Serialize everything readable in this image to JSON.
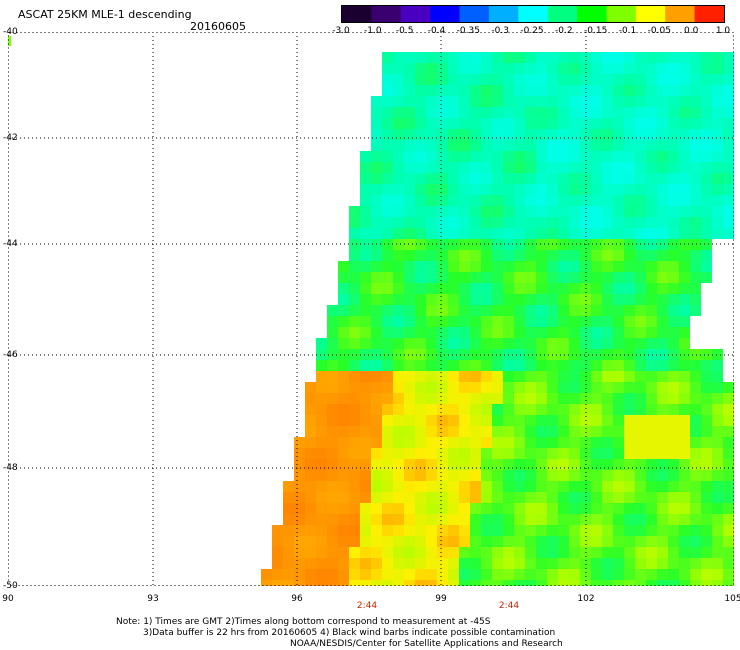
{
  "header": {
    "title": "ASCAT 25KM MLE-1 descending",
    "date": "20160605"
  },
  "colorbar": {
    "labels": [
      "-3.0",
      "-1.0",
      "-0.5",
      "-0.4",
      "-0.35",
      "-0.3",
      "-0.25",
      "-0.2",
      "-0.15",
      "-0.1",
      "-0.05",
      "0.0",
      "1.0"
    ],
    "colors": [
      "#1a0030",
      "#3a0070",
      "#4a00c0",
      "#0000ff",
      "#0060ff",
      "#00b0ff",
      "#00ffff",
      "#00ff80",
      "#00ff00",
      "#80ff00",
      "#ffff00",
      "#ffa000",
      "#ff2000"
    ]
  },
  "map": {
    "lat_labels": [
      "-40",
      "-42",
      "-44",
      "-46",
      "-48",
      "-50"
    ],
    "lon_labels": [
      "90",
      "93",
      "96",
      "99",
      "102",
      "105"
    ],
    "times": [
      "2:44",
      "2:44"
    ]
  },
  "notes": {
    "line1": "Note: 1) Times are GMT 2)Times along bottom correspond to measurement at -45S",
    "line2": "3)Data buffer is 22 hrs from 20160605 4) Black wind barbs indicate possible contamination",
    "line3": "NOAA/NESDIS/Center for Satellite Applications and Research"
  }
}
